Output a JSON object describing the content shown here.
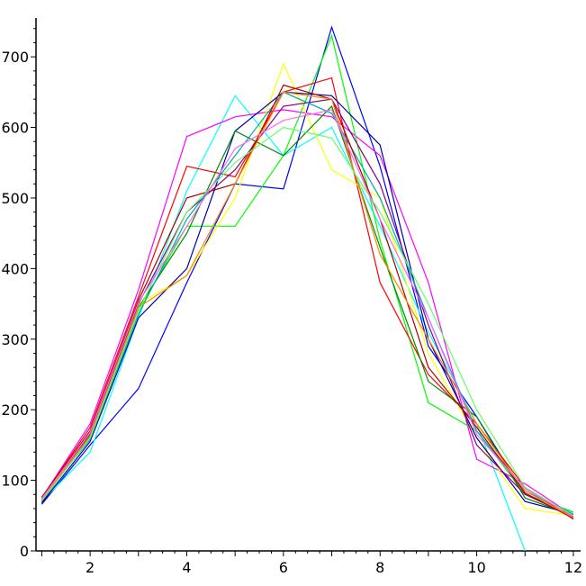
{
  "chart_data": {
    "type": "line",
    "title": "",
    "xlabel": "",
    "ylabel": "",
    "xlim": [
      0.88,
      12.15
    ],
    "ylim": [
      0,
      755
    ],
    "grid": false,
    "x_ticks": [
      2,
      4,
      6,
      8,
      10,
      12
    ],
    "y_ticks": [
      0,
      100,
      200,
      300,
      400,
      500,
      600,
      700
    ],
    "x": [
      1,
      2,
      3,
      4,
      5,
      6,
      7,
      8,
      9,
      10,
      11,
      12
    ],
    "series": [
      {
        "color": "#0000ff",
        "values": [
          66,
          150,
          230,
          380,
          520,
          513,
          742,
          545,
          290,
          190,
          80,
          55
        ]
      },
      {
        "color": "#00ffff",
        "values": [
          70,
          140,
          330,
          510,
          645,
          560,
          600,
          460,
          310,
          180,
          0,
          null
        ]
      },
      {
        "color": "#ff00ff",
        "values": [
          75,
          180,
          370,
          587,
          615,
          625,
          615,
          560,
          380,
          130,
          95,
          50
        ]
      },
      {
        "color": "#00ff00",
        "values": [
          70,
          165,
          340,
          460,
          460,
          560,
          730,
          440,
          210,
          170,
          80,
          55
        ]
      },
      {
        "color": "#ff0000",
        "values": [
          75,
          175,
          360,
          545,
          530,
          650,
          670,
          380,
          250,
          180,
          90,
          45
        ]
      },
      {
        "color": "#ffff00",
        "values": [
          72,
          160,
          350,
          390,
          500,
          690,
          540,
          500,
          280,
          160,
          60,
          50
        ]
      },
      {
        "color": "#0000aa",
        "values": [
          68,
          155,
          330,
          400,
          595,
          650,
          645,
          575,
          300,
          160,
          70,
          52
        ]
      },
      {
        "color": "#008800",
        "values": [
          70,
          162,
          345,
          450,
          595,
          560,
          630,
          430,
          240,
          190,
          75,
          50
        ]
      },
      {
        "color": "#880088",
        "values": [
          72,
          165,
          350,
          480,
          540,
          630,
          640,
          520,
          320,
          150,
          80,
          48
        ]
      },
      {
        "color": "#00aaaa",
        "values": [
          74,
          158,
          335,
          470,
          560,
          650,
          620,
          500,
          330,
          170,
          85,
          52
        ]
      },
      {
        "color": "#aa0000",
        "values": [
          76,
          170,
          355,
          500,
          520,
          660,
          640,
          470,
          260,
          175,
          82,
          46
        ]
      },
      {
        "color": "#ff8800",
        "values": [
          73,
          163,
          345,
          390,
          520,
          650,
          640,
          420,
          300,
          180,
          85,
          47
        ]
      },
      {
        "color": "#66ff66",
        "values": [
          71,
          160,
          340,
          480,
          550,
          600,
          585,
          480,
          350,
          200,
          90,
          50
        ]
      },
      {
        "color": "#ff66ff",
        "values": [
          74,
          168,
          352,
          460,
          570,
          610,
          625,
          470,
          330,
          165,
          88,
          49
        ]
      }
    ]
  }
}
